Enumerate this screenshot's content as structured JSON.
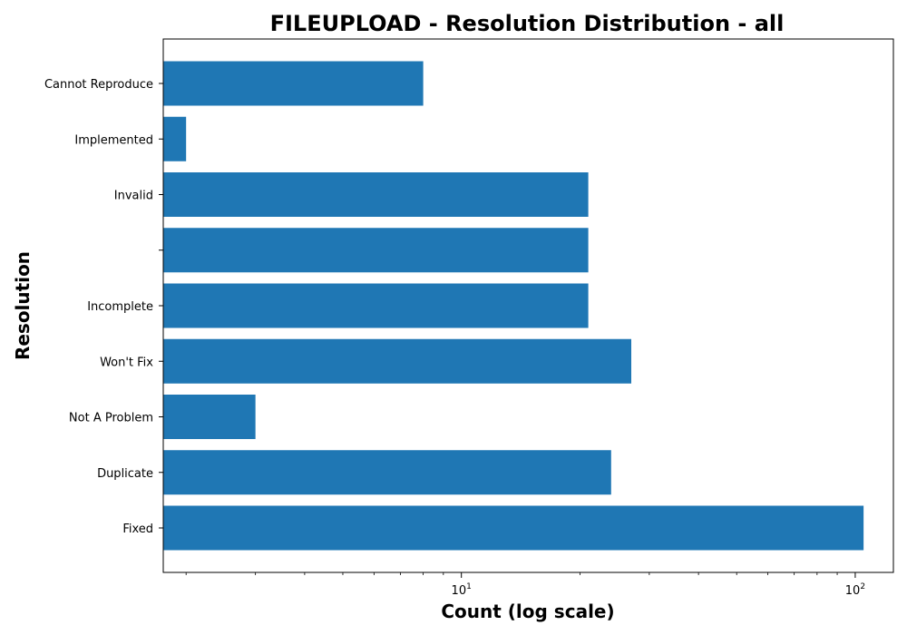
{
  "chart_data": {
    "type": "bar",
    "orientation": "horizontal",
    "title": "FILEUPLOAD - Resolution Distribution - all",
    "xlabel": "Count (log scale)",
    "ylabel": "Resolution",
    "x_scale": "log",
    "xlim": [
      1.75,
      125
    ],
    "x_major_ticks": [
      {
        "value": 10,
        "base": "10",
        "exp": "1"
      },
      {
        "value": 100,
        "base": "10",
        "exp": "2"
      }
    ],
    "categories": [
      "Fixed",
      "Duplicate",
      "Not A Problem",
      "Won't Fix",
      "Incomplete",
      "",
      "Invalid",
      "Implemented",
      "Cannot Reproduce"
    ],
    "values": [
      105,
      24,
      3,
      27,
      21,
      21,
      21,
      2,
      8
    ],
    "bar_color": "#1f77b4",
    "grid": false
  }
}
